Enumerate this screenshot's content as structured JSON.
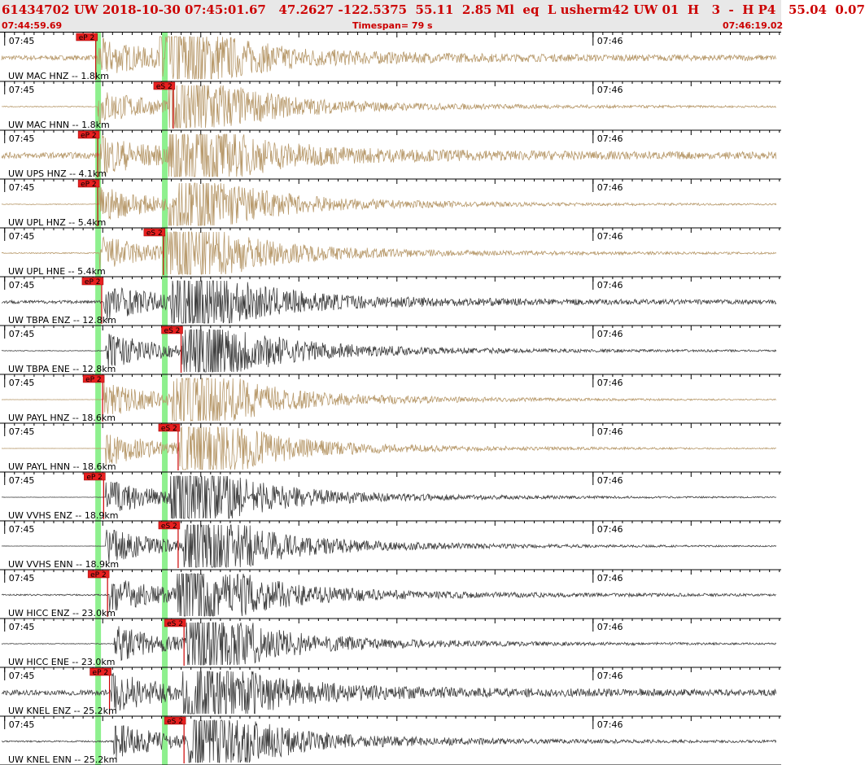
{
  "header": {
    "title": "61434702 UW 2018-10-30 07:45:01.67   47.2627 -122.5375  55.11  2.85 Ml  eq  L usherm42 UW 01  H   3  -  H P4   55.04  0.07",
    "start_time": "07:44:59.69",
    "timespan": "Timespan=  79 s",
    "end_time": "07:46:19.02"
  },
  "colors": {
    "accelerometer": "#b89a6c",
    "velocity": "#404040",
    "pick_box": "#e82020",
    "pick_line": "#cc0000",
    "arrival_band": "#8ef08e"
  },
  "chart_data": {
    "type": "line",
    "title": "",
    "xlabel": "",
    "ylabel": "",
    "x_unit": "seconds from 07:44:59.69",
    "xlim": [
      0,
      79.33
    ],
    "x_ticks": [
      {
        "t": 0.31,
        "label": "07:45"
      },
      {
        "t": 60.31,
        "label": "07:46"
      }
    ],
    "p_band_time": 9.8,
    "s_band_time": 16.6,
    "traces": [
      {
        "name": "UW MAC HNZ -- 1.8km",
        "type": "accel",
        "amp": 0.32,
        "p": 9.8,
        "s": 16.0,
        "pick": {
          "label": "eP 2",
          "t": 9.6
        }
      },
      {
        "name": "UW MAC HNN -- 1.8km",
        "type": "accel",
        "amp": 0.06,
        "p": 9.8,
        "s": 17.0,
        "pick": {
          "label": "eS 2",
          "t": 17.5
        }
      },
      {
        "name": "UW UPS HNZ -- 4.1km",
        "type": "accel",
        "amp": 0.42,
        "p": 9.9,
        "s": 17.0,
        "pick": {
          "label": "eP 2",
          "t": 9.8
        }
      },
      {
        "name": "UW UPL HNZ -- 5.4km",
        "type": "accel",
        "amp": 0.05,
        "p": 10.0,
        "s": 17.0,
        "pick": {
          "label": "eP 2",
          "t": 9.8
        }
      },
      {
        "name": "UW UPL HNE -- 5.4km",
        "type": "accel",
        "amp": 0.08,
        "p": 10.0,
        "s": 16.6,
        "pick": {
          "label": "eS 2",
          "t": 16.5
        }
      },
      {
        "name": "UW TBPA ENZ -- 12.8km",
        "type": "vel",
        "amp": 0.22,
        "p": 10.4,
        "s": 17.2,
        "pick": {
          "label": "eP 2",
          "t": 10.2
        }
      },
      {
        "name": "UW TBPA ENE -- 12.8km",
        "type": "vel",
        "amp": 0.05,
        "p": 10.6,
        "s": 18.4,
        "pick": {
          "label": "eS 2",
          "t": 18.3
        }
      },
      {
        "name": "UW PAYL HNZ -- 18.6km",
        "type": "accel",
        "amp": 0.02,
        "p": 10.4,
        "s": 17.4,
        "pick": {
          "label": "eP 2",
          "t": 10.3
        }
      },
      {
        "name": "UW PAYL HNN -- 18.6km",
        "type": "accel",
        "amp": 0.01,
        "p": 10.6,
        "s": 18.1,
        "pick": {
          "label": "eS 2",
          "t": 18.0
        }
      },
      {
        "name": "UW VVHS ENZ -- 18.9km",
        "type": "vel",
        "amp": 0.02,
        "p": 10.6,
        "s": 17.2,
        "pick": {
          "label": "eP 2",
          "t": 10.4
        }
      },
      {
        "name": "UW VVHS ENN -- 18.9km",
        "type": "vel",
        "amp": 0.02,
        "p": 10.6,
        "s": 18.6,
        "pick": {
          "label": "eS 2",
          "t": 18.0
        }
      },
      {
        "name": "UW HICC ENZ -- 23.0km",
        "type": "vel",
        "amp": 0.1,
        "p": 11.0,
        "s": 17.8,
        "pick": {
          "label": "eP 2",
          "t": 10.8
        }
      },
      {
        "name": "UW HICC ENE -- 23.0km",
        "type": "vel",
        "amp": 0.05,
        "p": 11.4,
        "s": 18.8,
        "pick": {
          "label": "eS 2",
          "t": 18.6
        }
      },
      {
        "name": "UW KNEL ENZ -- 25.2km",
        "type": "vel",
        "amp": 0.35,
        "p": 11.2,
        "s": 18.4,
        "pick": {
          "label": "eP 2",
          "t": 11.0
        }
      },
      {
        "name": "UW KNEL ENN -- 25.2km",
        "type": "vel",
        "amp": 0.1,
        "p": 11.4,
        "s": 19.0,
        "pick": {
          "label": "eS 2",
          "t": 18.6
        }
      }
    ]
  }
}
